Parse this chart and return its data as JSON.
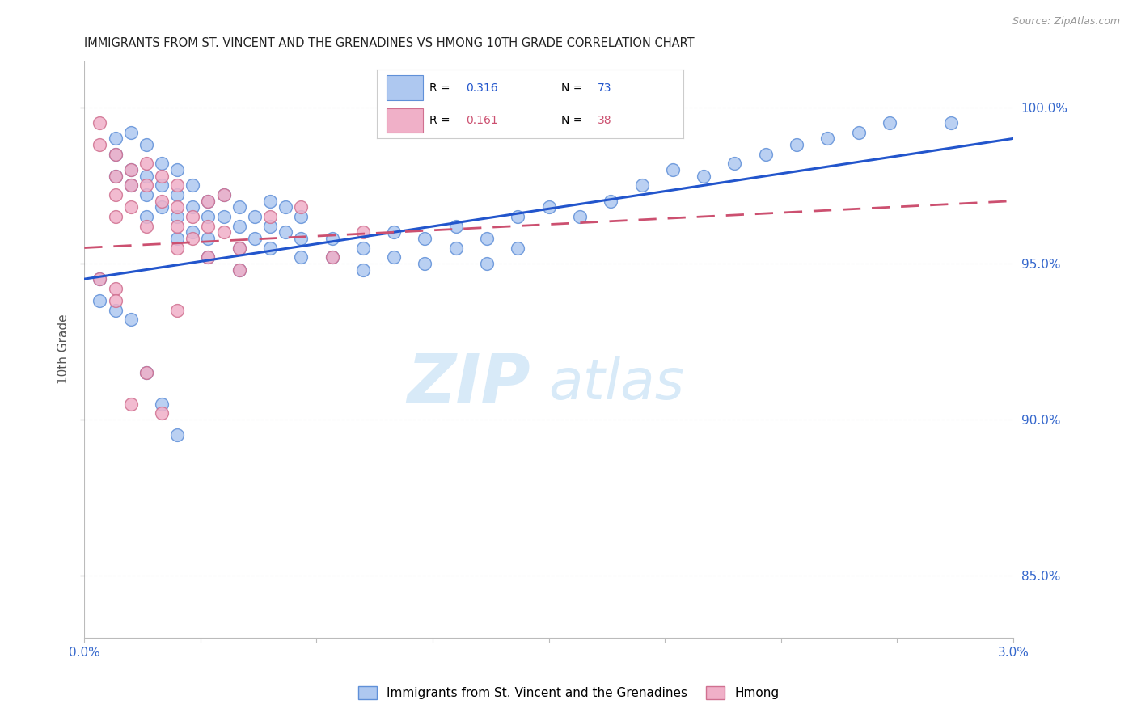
{
  "title": "IMMIGRANTS FROM ST. VINCENT AND THE GRENADINES VS HMONG 10TH GRADE CORRELATION CHART",
  "source": "Source: ZipAtlas.com",
  "ylabel": "10th Grade",
  "xmin": 0.0,
  "xmax": 0.03,
  "ymin": 83.0,
  "ymax": 101.5,
  "yticks": [
    85.0,
    90.0,
    95.0,
    100.0
  ],
  "ytick_labels": [
    "85.0%",
    "90.0%",
    "95.0%",
    "100.0%"
  ],
  "r_blue": 0.316,
  "n_blue": 73,
  "r_pink": 0.161,
  "n_pink": 38,
  "legend_label_blue": "Immigrants from St. Vincent and the Grenadines",
  "legend_label_pink": "Hmong",
  "blue_face_color": "#aec8f0",
  "blue_edge_color": "#6090d8",
  "pink_face_color": "#f0b0c8",
  "pink_edge_color": "#d07090",
  "blue_line_color": "#2255cc",
  "pink_line_color": "#cc5070",
  "right_axis_color": "#3366cc",
  "grid_color": "#e0e4ec",
  "title_color": "#222222",
  "source_color": "#999999",
  "ylabel_color": "#555555",
  "watermark_color": "#d8eaf8",
  "blue_scatter_x": [
    0.001,
    0.001,
    0.001,
    0.0015,
    0.0015,
    0.0015,
    0.002,
    0.002,
    0.002,
    0.002,
    0.0025,
    0.0025,
    0.0025,
    0.003,
    0.003,
    0.003,
    0.003,
    0.0035,
    0.0035,
    0.0035,
    0.004,
    0.004,
    0.004,
    0.004,
    0.0045,
    0.0045,
    0.005,
    0.005,
    0.005,
    0.005,
    0.0055,
    0.0055,
    0.006,
    0.006,
    0.006,
    0.0065,
    0.0065,
    0.007,
    0.007,
    0.007,
    0.008,
    0.008,
    0.009,
    0.009,
    0.01,
    0.01,
    0.011,
    0.011,
    0.012,
    0.012,
    0.013,
    0.013,
    0.014,
    0.014,
    0.015,
    0.016,
    0.017,
    0.018,
    0.019,
    0.02,
    0.021,
    0.022,
    0.023,
    0.024,
    0.025,
    0.026,
    0.0005,
    0.0005,
    0.001,
    0.0015,
    0.002,
    0.0025,
    0.003,
    0.028
  ],
  "blue_scatter_y": [
    99.0,
    98.5,
    97.8,
    99.2,
    98.0,
    97.5,
    98.8,
    97.8,
    97.2,
    96.5,
    98.2,
    97.5,
    96.8,
    98.0,
    97.2,
    96.5,
    95.8,
    97.5,
    96.8,
    96.0,
    97.0,
    96.5,
    95.8,
    95.2,
    97.2,
    96.5,
    96.8,
    96.2,
    95.5,
    94.8,
    96.5,
    95.8,
    97.0,
    96.2,
    95.5,
    96.8,
    96.0,
    96.5,
    95.8,
    95.2,
    95.8,
    95.2,
    95.5,
    94.8,
    96.0,
    95.2,
    95.8,
    95.0,
    96.2,
    95.5,
    95.8,
    95.0,
    96.5,
    95.5,
    96.8,
    96.5,
    97.0,
    97.5,
    98.0,
    97.8,
    98.2,
    98.5,
    98.8,
    99.0,
    99.2,
    99.5,
    94.5,
    93.8,
    93.5,
    93.2,
    91.5,
    90.5,
    89.5,
    99.5
  ],
  "pink_scatter_x": [
    0.0005,
    0.0005,
    0.001,
    0.001,
    0.001,
    0.001,
    0.0015,
    0.0015,
    0.0015,
    0.002,
    0.002,
    0.002,
    0.0025,
    0.0025,
    0.003,
    0.003,
    0.003,
    0.003,
    0.0035,
    0.0035,
    0.004,
    0.004,
    0.0045,
    0.0045,
    0.005,
    0.005,
    0.006,
    0.007,
    0.008,
    0.009,
    0.0005,
    0.001,
    0.001,
    0.0015,
    0.002,
    0.0025,
    0.003,
    0.004
  ],
  "pink_scatter_y": [
    99.5,
    98.8,
    98.5,
    97.8,
    97.2,
    96.5,
    98.0,
    97.5,
    96.8,
    98.2,
    97.5,
    96.2,
    97.8,
    97.0,
    97.5,
    96.8,
    96.2,
    95.5,
    96.5,
    95.8,
    97.0,
    96.2,
    97.2,
    96.0,
    95.5,
    94.8,
    96.5,
    96.8,
    95.2,
    96.0,
    94.5,
    94.2,
    93.8,
    90.5,
    91.5,
    90.2,
    93.5,
    95.2
  ]
}
